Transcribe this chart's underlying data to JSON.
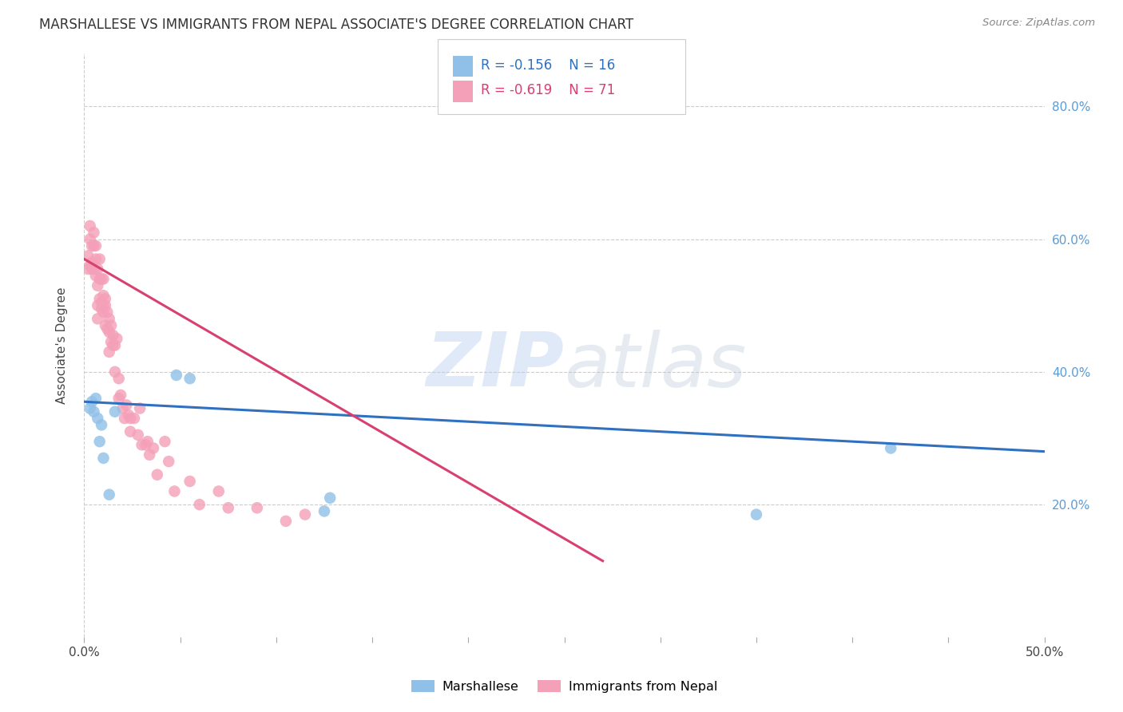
{
  "title": "MARSHALLESE VS IMMIGRANTS FROM NEPAL ASSOCIATE'S DEGREE CORRELATION CHART",
  "source": "Source: ZipAtlas.com",
  "ylabel": "Associate's Degree",
  "xlim": [
    0.0,
    0.5
  ],
  "ylim": [
    0.0,
    0.88
  ],
  "legend_blue_r": "-0.156",
  "legend_blue_n": "16",
  "legend_pink_r": "-0.619",
  "legend_pink_n": "71",
  "blue_scatter_x": [
    0.003,
    0.004,
    0.005,
    0.006,
    0.007,
    0.008,
    0.009,
    0.01,
    0.013,
    0.016,
    0.048,
    0.055,
    0.125,
    0.128,
    0.42,
    0.35
  ],
  "blue_scatter_y": [
    0.345,
    0.355,
    0.34,
    0.36,
    0.33,
    0.295,
    0.32,
    0.27,
    0.215,
    0.34,
    0.395,
    0.39,
    0.19,
    0.21,
    0.285,
    0.185
  ],
  "pink_scatter_x": [
    0.002,
    0.002,
    0.003,
    0.003,
    0.003,
    0.004,
    0.004,
    0.004,
    0.005,
    0.005,
    0.005,
    0.006,
    0.006,
    0.006,
    0.007,
    0.007,
    0.007,
    0.007,
    0.008,
    0.008,
    0.008,
    0.009,
    0.009,
    0.009,
    0.01,
    0.01,
    0.01,
    0.01,
    0.011,
    0.011,
    0.011,
    0.012,
    0.012,
    0.013,
    0.013,
    0.013,
    0.014,
    0.014,
    0.015,
    0.015,
    0.016,
    0.016,
    0.017,
    0.018,
    0.018,
    0.019,
    0.02,
    0.021,
    0.022,
    0.023,
    0.024,
    0.024,
    0.026,
    0.028,
    0.029,
    0.03,
    0.032,
    0.033,
    0.034,
    0.036,
    0.038,
    0.042,
    0.044,
    0.047,
    0.055,
    0.06,
    0.07,
    0.075,
    0.09,
    0.105,
    0.115
  ],
  "pink_scatter_y": [
    0.555,
    0.575,
    0.56,
    0.6,
    0.62,
    0.555,
    0.59,
    0.565,
    0.555,
    0.59,
    0.61,
    0.545,
    0.57,
    0.59,
    0.555,
    0.53,
    0.5,
    0.48,
    0.57,
    0.54,
    0.51,
    0.54,
    0.505,
    0.495,
    0.54,
    0.515,
    0.5,
    0.49,
    0.51,
    0.47,
    0.5,
    0.49,
    0.465,
    0.48,
    0.46,
    0.43,
    0.47,
    0.445,
    0.455,
    0.44,
    0.44,
    0.4,
    0.45,
    0.39,
    0.36,
    0.365,
    0.345,
    0.33,
    0.35,
    0.335,
    0.33,
    0.31,
    0.33,
    0.305,
    0.345,
    0.29,
    0.29,
    0.295,
    0.275,
    0.285,
    0.245,
    0.295,
    0.265,
    0.22,
    0.235,
    0.2,
    0.22,
    0.195,
    0.195,
    0.175,
    0.185
  ],
  "blue_line_x": [
    0.0,
    0.5
  ],
  "blue_line_y": [
    0.355,
    0.28
  ],
  "pink_line_x": [
    0.0,
    0.27
  ],
  "pink_line_y": [
    0.57,
    0.115
  ],
  "blue_color": "#90c0e8",
  "pink_color": "#f4a0b8",
  "blue_line_color": "#3070c0",
  "pink_line_color": "#d84070",
  "watermark_zip": "ZIP",
  "watermark_atlas": "atlas",
  "background_color": "#ffffff",
  "grid_color": "#cccccc"
}
